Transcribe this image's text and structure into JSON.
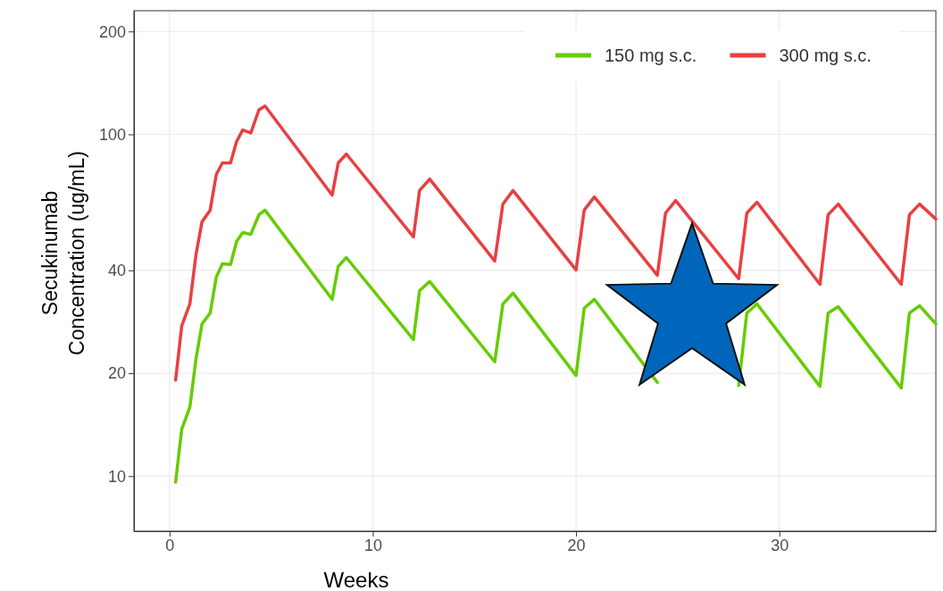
{
  "chart_data": {
    "type": "line",
    "xlabel": "Weeks",
    "ylabel": "Secukinumab\nConcentration (ug/mL)",
    "log": "y",
    "grid": true,
    "legend": "top right",
    "line_style": "solid",
    "marker": "none",
    "xlim": [
      -1.75,
      37.7
    ],
    "xticks": [
      0,
      10,
      20,
      30
    ],
    "ylim": [
      6.9,
      230
    ],
    "yticks": [
      10,
      20,
      40,
      100,
      200
    ],
    "series": [
      {
        "name": "150 mg s.c.",
        "color": "#66cc00",
        "x": [
          0.3,
          0.6,
          1.0,
          1.3,
          1.6,
          2.0,
          2.3,
          2.6,
          3.0,
          3.3,
          3.6,
          4.0,
          4.4,
          4.7,
          8,
          8.3,
          8.7,
          12,
          12.3,
          12.8,
          16,
          16.4,
          16.9,
          20,
          20.4,
          20.9,
          24,
          24.4,
          24.9,
          28,
          28.4,
          28.9,
          32,
          32.4,
          32.9,
          36,
          36.4,
          36.9,
          37.7
        ],
        "values": [
          9.6,
          13.7,
          15.9,
          22,
          27.9,
          30,
          38.2,
          41.8,
          41.6,
          48.6,
          51.6,
          51,
          58.2,
          60,
          32.9,
          41.1,
          43.6,
          25.1,
          34.9,
          37.1,
          21.6,
          31.9,
          34.3,
          19.7,
          31,
          32.9,
          18.8,
          null,
          null,
          18.4,
          30,
          31.9,
          18.3,
          30,
          31.3,
          18.1,
          30,
          31.5,
          27.9
        ]
      },
      {
        "name": "300 mg s.c.",
        "color": "#e8403f",
        "x": [
          0.3,
          0.6,
          1.0,
          1.3,
          1.6,
          2.0,
          2.3,
          2.6,
          3.0,
          3.3,
          3.6,
          4.0,
          4.4,
          4.7,
          8,
          8.3,
          8.7,
          12,
          12.3,
          12.8,
          16,
          16.4,
          16.9,
          20,
          20.4,
          20.9,
          24,
          24.4,
          24.9,
          28,
          28.4,
          28.9,
          32,
          32.4,
          32.9,
          36,
          36.4,
          36.9,
          37.7
        ],
        "values": [
          19.1,
          27.5,
          31.9,
          44.4,
          55.5,
          60,
          76.3,
          82.5,
          82.5,
          95.3,
          103,
          101,
          118,
          121,
          66.4,
          82.5,
          87.6,
          50.1,
          68.5,
          74,
          42.6,
          62.5,
          68.5,
          40.1,
          60,
          65.6,
          38.7,
          58.8,
          64,
          37.8,
          58.8,
          63.3,
          36.4,
          58.2,
          62.5,
          36.4,
          58.2,
          62.5,
          56.5
        ]
      }
    ]
  }
}
